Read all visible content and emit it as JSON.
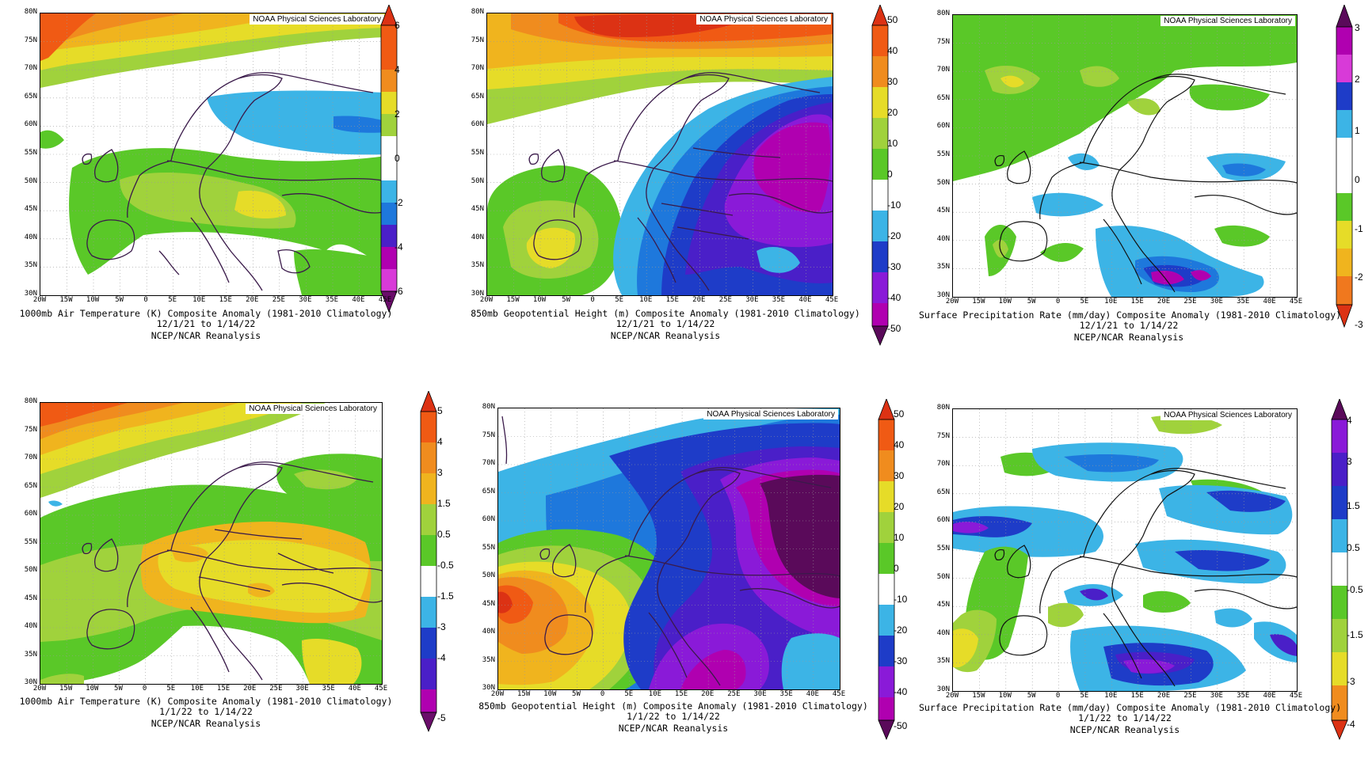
{
  "source_label": "NOAA Physical Sciences Laboratory",
  "lat_labels": [
    "80N",
    "75N",
    "70N",
    "65N",
    "60N",
    "55N",
    "50N",
    "45N",
    "40N",
    "35N",
    "30N"
  ],
  "lon_labels": [
    "20W",
    "15W",
    "10W",
    "5W",
    "0",
    "5E",
    "10E",
    "15E",
    "20E",
    "25E",
    "30E",
    "35E",
    "40E",
    "45E"
  ],
  "reanalysis": "NCEP/NCAR Reanalysis",
  "colors": {
    "temp_scale": [
      "#6a0d6a",
      "#b000b0",
      "#d83ad8",
      "#4a1fc8",
      "#1e3cc8",
      "#1e78dc",
      "#3cb4e6",
      "#ffffff",
      "#5ac828",
      "#a0d23c",
      "#e6dc28",
      "#f0b41e",
      "#f08c1e",
      "#f05a14",
      "#dc3214"
    ],
    "precip_scale": [
      "#dc3214",
      "#f0781e",
      "#f0b41e",
      "#e6dc28",
      "#a0d23c",
      "#5ac828",
      "#ffffff",
      "#3cb4e6",
      "#1e78dc",
      "#1e3cc8",
      "#6a1fc8",
      "#b000b0",
      "#5a0a5a"
    ]
  },
  "panels": [
    {
      "id": "top-left",
      "title_line": "1000mb Air Temperature (K) Composite Anomaly (1981-2010 Climatology)",
      "date_line": "12/1/21  to 1/14/22",
      "colorbar_labels": [
        "6",
        "4",
        "2",
        "0",
        "-2",
        "-4",
        "-6"
      ]
    },
    {
      "id": "top-middle",
      "title_line": "850mb Geopotential Height (m) Composite Anomaly (1981-2010 Climatology)",
      "date_line": "12/1/21  to 1/14/22",
      "colorbar_labels": [
        "50",
        "40",
        "30",
        "20",
        "10",
        "0",
        "-10",
        "-20",
        "-30",
        "-40",
        "-50"
      ]
    },
    {
      "id": "top-right",
      "title_line": "Surface Precipitation Rate (mm/day) Composite Anomaly (1981-2010 Climatology)",
      "date_line": "12/1/21  to 1/14/22",
      "colorbar_labels": [
        "3",
        "2",
        "1",
        "0",
        "-1",
        "-2",
        "-3"
      ]
    },
    {
      "id": "bottom-left",
      "title_line": "1000mb Air Temperature (K) Composite Anomaly (1981-2010 Climatology)",
      "date_line": "1/1/22  to 1/14/22",
      "colorbar_labels": [
        "5",
        "4",
        "3",
        "1.5",
        "0.5",
        "-0.5",
        "-1.5",
        "-3",
        "-4",
        "-5"
      ]
    },
    {
      "id": "bottom-middle",
      "title_line": "850mb Geopotential Height (m) Composite Anomaly (1981-2010 Climatology)",
      "date_line": "1/1/22  to 1/14/22",
      "colorbar_labels": [
        "50",
        "40",
        "30",
        "20",
        "10",
        "0",
        "-10",
        "-20",
        "-30",
        "-40",
        "-50"
      ]
    },
    {
      "id": "bottom-right",
      "title_line": "Surface Precipitation Rate (mm/day) Composite Anomaly (1981-2010 Climatology)",
      "date_line": "1/1/22  to 1/14/22",
      "colorbar_labels": [
        "4",
        "3",
        "1.5",
        "0.5",
        "-0.5",
        "-1.5",
        "-3",
        "-4"
      ]
    }
  ]
}
